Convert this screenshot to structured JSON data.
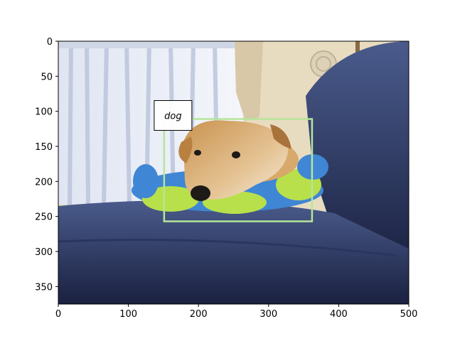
{
  "image": {
    "subject": "dog",
    "x_range": [
      0,
      500
    ],
    "y_range": [
      0,
      375
    ],
    "y_inverted": true
  },
  "x_ticks": [
    "0",
    "100",
    "200",
    "300",
    "400",
    "500"
  ],
  "y_ticks": [
    "0",
    "50",
    "100",
    "150",
    "200",
    "250",
    "300",
    "350"
  ],
  "x_tick_values": [
    0,
    100,
    200,
    300,
    400,
    500
  ],
  "y_tick_values": [
    0,
    50,
    100,
    150,
    200,
    250,
    300,
    350
  ],
  "annotations": [
    {
      "label": "dog",
      "box": {
        "x1": 151,
        "y1": 111,
        "x2": 362,
        "y2": 257
      },
      "color": "#b6e59a"
    }
  ],
  "colors": {
    "curtain": "#e7ecf5",
    "curtain_shadow": "#b9c3d9",
    "wall": "#e8dcc0",
    "drape": "#d8c8a8",
    "sofa": "#3a4a78",
    "sofa_dark": "#1c2442",
    "toy_blue": "#3f86d4",
    "toy_green": "#b8e04a",
    "dog_fur": "#d7a96a",
    "dog_light": "#efe3d0"
  }
}
